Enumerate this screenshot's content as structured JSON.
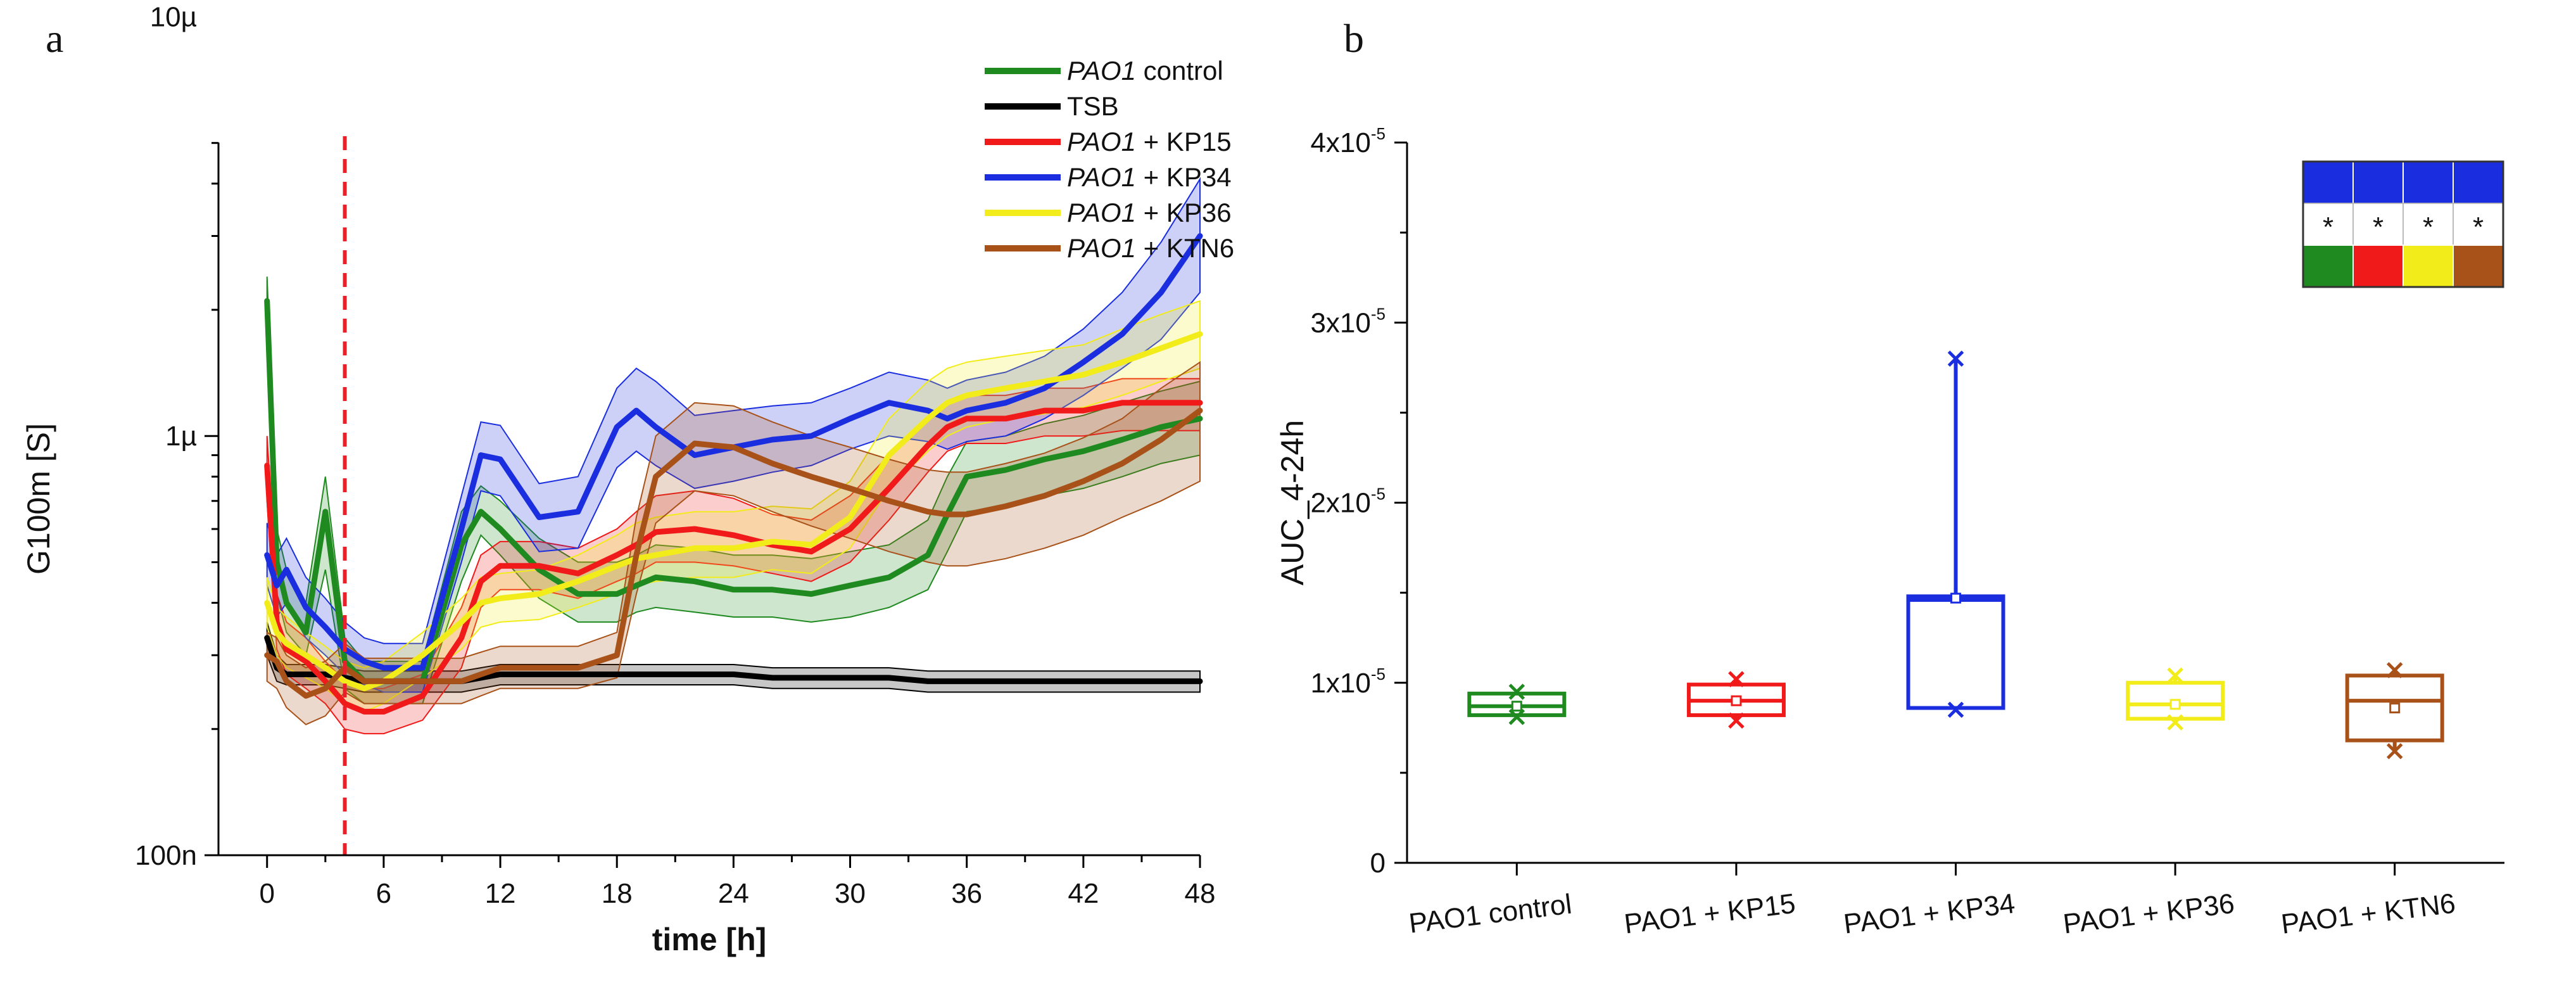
{
  "panels": {
    "a_letter": "a",
    "b_letter": "b"
  },
  "chart_data": [
    {
      "type": "line",
      "id": "panel-a",
      "title": "",
      "xlabel": "time [h]",
      "ylabel": "G100m [S]",
      "yscale": "log",
      "xlim": [
        -2.5,
        48
      ],
      "ylim_exp": [
        -7,
        -5.3
      ],
      "x_ticks": [
        0,
        6,
        12,
        18,
        24,
        30,
        36,
        42,
        48
      ],
      "x_tick_labels": [
        "0",
        "6",
        "12",
        "18",
        "24",
        "30",
        "36",
        "42",
        "48"
      ],
      "y_ticks": [
        1e-07,
        1e-06,
        1e-05
      ],
      "y_tick_labels": [
        "100n",
        "1µ",
        "10µ"
      ],
      "vline": {
        "x": 4,
        "color": "#e8202a",
        "style": "dashed"
      },
      "legend": {
        "position": "top-right",
        "entries": [
          {
            "italic": "PAO1",
            "text": " control",
            "color": "#1f8a1f"
          },
          {
            "italic": "",
            "text": "TSB",
            "color": "#000000"
          },
          {
            "italic": "PAO1",
            "text": " + KP15",
            "color": "#f01a1a"
          },
          {
            "italic": "PAO1",
            "text": " + KP34",
            "color": "#1a2ee0"
          },
          {
            "italic": "PAO1",
            "text": " + KP36",
            "color": "#f2ec1a"
          },
          {
            "italic": "PAO1",
            "text": " + KTN6",
            "color": "#a8521a"
          }
        ]
      },
      "x": [
        0,
        0.5,
        1,
        2,
        3,
        4,
        5,
        6,
        8,
        10,
        11,
        12,
        14,
        16,
        18,
        19,
        20,
        22,
        24,
        26,
        28,
        30,
        32,
        34,
        35,
        36,
        38,
        40,
        42,
        44,
        46,
        48
      ],
      "series": [
        {
          "name": "PAO1 control",
          "color": "#1f8a1f",
          "values": [
            2.1e-06,
            5e-07,
            4e-07,
            3.4e-07,
            6.6e-07,
            2.9e-07,
            2.6e-07,
            2.6e-07,
            2.6e-07,
            5.5e-07,
            6.6e-07,
            6e-07,
            4.8e-07,
            4.2e-07,
            4.2e-07,
            4.4e-07,
            4.6e-07,
            4.5e-07,
            4.3e-07,
            4.3e-07,
            4.2e-07,
            4.4e-07,
            4.6e-07,
            5.2e-07,
            6.5e-07,
            8e-07,
            8.3e-07,
            8.8e-07,
            9.2e-07,
            9.8e-07,
            1.05e-06,
            1.1e-06
          ],
          "lower": [
            1.6e-06,
            4.2e-07,
            3.4e-07,
            3e-07,
            4.8e-07,
            2.5e-07,
            2.3e-07,
            2.3e-07,
            2.3e-07,
            4.5e-07,
            5.8e-07,
            5.2e-07,
            4.1e-07,
            3.6e-07,
            3.6e-07,
            3.8e-07,
            3.9e-07,
            3.8e-07,
            3.7e-07,
            3.7e-07,
            3.6e-07,
            3.7e-07,
            3.9e-07,
            4.3e-07,
            5.3e-07,
            6.6e-07,
            6.8e-07,
            7.2e-07,
            7.5e-07,
            8e-07,
            8.6e-07,
            9e-07
          ],
          "upper": [
            2.4e-06,
            6e-07,
            4.8e-07,
            4e-07,
            8e-07,
            3.3e-07,
            2.9e-07,
            2.9e-07,
            2.9e-07,
            6.6e-07,
            7.6e-07,
            7e-07,
            5.7e-07,
            5e-07,
            5e-07,
            5.2e-07,
            5.5e-07,
            5.4e-07,
            5.2e-07,
            5.2e-07,
            5.1e-07,
            5.3e-07,
            5.5e-07,
            6.3e-07,
            8e-07,
            9.7e-07,
            1e-06,
            1.07e-06,
            1.12e-06,
            1.2e-06,
            1.28e-06,
            1.35e-06
          ]
        },
        {
          "name": "TSB",
          "color": "#000000",
          "values": [
            3.3e-07,
            2.8e-07,
            2.7e-07,
            2.7e-07,
            2.7e-07,
            2.65e-07,
            2.6e-07,
            2.6e-07,
            2.6e-07,
            2.6e-07,
            2.65e-07,
            2.7e-07,
            2.7e-07,
            2.7e-07,
            2.7e-07,
            2.7e-07,
            2.7e-07,
            2.7e-07,
            2.7e-07,
            2.65e-07,
            2.65e-07,
            2.65e-07,
            2.65e-07,
            2.6e-07,
            2.6e-07,
            2.6e-07,
            2.6e-07,
            2.6e-07,
            2.6e-07,
            2.6e-07,
            2.6e-07,
            2.6e-07
          ],
          "lower": [
            3e-07,
            2.6e-07,
            2.55e-07,
            2.55e-07,
            2.55e-07,
            2.5e-07,
            2.45e-07,
            2.45e-07,
            2.45e-07,
            2.45e-07,
            2.5e-07,
            2.55e-07,
            2.55e-07,
            2.55e-07,
            2.55e-07,
            2.55e-07,
            2.55e-07,
            2.55e-07,
            2.55e-07,
            2.5e-07,
            2.5e-07,
            2.5e-07,
            2.5e-07,
            2.45e-07,
            2.45e-07,
            2.45e-07,
            2.45e-07,
            2.45e-07,
            2.45e-07,
            2.45e-07,
            2.45e-07,
            2.45e-07
          ],
          "upper": [
            3.6e-07,
            3e-07,
            2.85e-07,
            2.85e-07,
            2.85e-07,
            2.8e-07,
            2.75e-07,
            2.75e-07,
            2.75e-07,
            2.75e-07,
            2.8e-07,
            2.85e-07,
            2.85e-07,
            2.85e-07,
            2.85e-07,
            2.85e-07,
            2.85e-07,
            2.85e-07,
            2.85e-07,
            2.8e-07,
            2.8e-07,
            2.8e-07,
            2.8e-07,
            2.75e-07,
            2.75e-07,
            2.75e-07,
            2.75e-07,
            2.75e-07,
            2.75e-07,
            2.75e-07,
            2.75e-07,
            2.75e-07
          ]
        },
        {
          "name": "PAO1 + KP15",
          "color": "#f01a1a",
          "values": [
            8.5e-07,
            3.6e-07,
            3.1e-07,
            2.9e-07,
            2.6e-07,
            2.3e-07,
            2.2e-07,
            2.2e-07,
            2.4e-07,
            3.3e-07,
            4.5e-07,
            4.9e-07,
            4.9e-07,
            4.7e-07,
            5.2e-07,
            5.5e-07,
            5.9e-07,
            6e-07,
            5.8e-07,
            5.5e-07,
            5.3e-07,
            6e-07,
            7.5e-07,
            9.5e-07,
            1.05e-06,
            1.1e-06,
            1.1e-06,
            1.15e-06,
            1.15e-06,
            1.2e-06,
            1.2e-06,
            1.2e-06
          ],
          "lower": [
            7e-07,
            3.1e-07,
            2.7e-07,
            2.5e-07,
            2.3e-07,
            2e-07,
            1.95e-07,
            1.95e-07,
            2.1e-07,
            2.8e-07,
            3.9e-07,
            4.3e-07,
            4.3e-07,
            4.1e-07,
            4.5e-07,
            4.7e-07,
            5e-07,
            5e-07,
            4.9e-07,
            4.7e-07,
            4.5e-07,
            5e-07,
            6.3e-07,
            8.2e-07,
            9.2e-07,
            9.6e-07,
            9.6e-07,
            1e-06,
            1e-06,
            1.03e-06,
            1.03e-06,
            1.03e-06
          ],
          "upper": [
            1e-06,
            4.2e-07,
            3.6e-07,
            3.3e-07,
            2.9e-07,
            2.6e-07,
            2.5e-07,
            2.5e-07,
            2.7e-07,
            3.9e-07,
            5.2e-07,
            5.6e-07,
            5.6e-07,
            5.4e-07,
            6e-07,
            6.6e-07,
            7.2e-07,
            7.4e-07,
            7.1e-07,
            6.5e-07,
            6.3e-07,
            7.2e-07,
            9e-07,
            1.1e-06,
            1.2e-06,
            1.25e-06,
            1.25e-06,
            1.3e-06,
            1.3e-06,
            1.37e-06,
            1.37e-06,
            1.37e-06
          ]
        },
        {
          "name": "PAO1 + KP34",
          "color": "#1a2ee0",
          "values": [
            5.2e-07,
            4.4e-07,
            4.8e-07,
            3.9e-07,
            3.5e-07,
            3.1e-07,
            2.9e-07,
            2.8e-07,
            2.8e-07,
            6e-07,
            9e-07,
            8.8e-07,
            6.4e-07,
            6.6e-07,
            1.05e-06,
            1.15e-06,
            1.05e-06,
            9e-07,
            9.4e-07,
            9.8e-07,
            1e-06,
            1.1e-06,
            1.2e-06,
            1.15e-06,
            1.1e-06,
            1.15e-06,
            1.2e-06,
            1.3e-06,
            1.5e-06,
            1.75e-06,
            2.2e-06,
            3e-06
          ],
          "lower": [
            4.4e-07,
            3.7e-07,
            4e-07,
            3.3e-07,
            3e-07,
            2.7e-07,
            2.55e-07,
            2.45e-07,
            2.45e-07,
            5e-07,
            7.4e-07,
            7.2e-07,
            5.3e-07,
            5.4e-07,
            8.4e-07,
            9.2e-07,
            8.5e-07,
            7.5e-07,
            7.8e-07,
            8.2e-07,
            8.5e-07,
            9.3e-07,
            1e-06,
            9.7e-07,
            9.3e-07,
            9.7e-07,
            1e-06,
            1.1e-06,
            1.25e-06,
            1.45e-06,
            1.7e-06,
            2.2e-06
          ],
          "upper": [
            6.2e-07,
            5.2e-07,
            5.7e-07,
            4.6e-07,
            4.1e-07,
            3.6e-07,
            3.3e-07,
            3.2e-07,
            3.2e-07,
            7.2e-07,
            1.08e-06,
            1.06e-06,
            7.7e-07,
            8e-07,
            1.3e-06,
            1.45e-06,
            1.35e-06,
            1.12e-06,
            1.15e-06,
            1.18e-06,
            1.2e-06,
            1.3e-06,
            1.42e-06,
            1.36e-06,
            1.3e-06,
            1.36e-06,
            1.42e-06,
            1.55e-06,
            1.8e-06,
            2.2e-06,
            2.9e-06,
            4.1e-06
          ]
        },
        {
          "name": "PAO1 + KP36",
          "color": "#f2ec1a",
          "values": [
            4e-07,
            3.4e-07,
            3.2e-07,
            3e-07,
            2.8e-07,
            2.6e-07,
            2.5e-07,
            2.6e-07,
            3e-07,
            3.6e-07,
            4e-07,
            4.1e-07,
            4.2e-07,
            4.5e-07,
            4.9e-07,
            5.1e-07,
            5.2e-07,
            5.4e-07,
            5.4e-07,
            5.6e-07,
            5.5e-07,
            6.4e-07,
            9e-07,
            1.1e-06,
            1.2e-06,
            1.25e-06,
            1.3e-06,
            1.35e-06,
            1.4e-06,
            1.5e-06,
            1.62e-06,
            1.75e-06
          ],
          "lower": [
            3.5e-07,
            3e-07,
            2.8e-07,
            2.65e-07,
            2.5e-07,
            2.3e-07,
            2.2e-07,
            2.3e-07,
            2.65e-07,
            3.1e-07,
            3.5e-07,
            3.6e-07,
            3.65e-07,
            3.9e-07,
            4.2e-07,
            4.4e-07,
            4.5e-07,
            4.6e-07,
            4.6e-07,
            4.8e-07,
            4.7e-07,
            5.4e-07,
            7.5e-07,
            9.2e-07,
            1e-06,
            1.05e-06,
            1.1e-06,
            1.13e-06,
            1.17e-06,
            1.25e-06,
            1.35e-06,
            1.45e-06
          ],
          "upper": [
            4.6e-07,
            3.9e-07,
            3.7e-07,
            3.4e-07,
            3.15e-07,
            2.9e-07,
            2.8e-07,
            2.9e-07,
            3.4e-07,
            4.1e-07,
            4.6e-07,
            4.7e-07,
            4.8e-07,
            5.2e-07,
            5.8e-07,
            6.2e-07,
            6.4e-07,
            6.6e-07,
            6.6e-07,
            6.8e-07,
            6.7e-07,
            7.8e-07,
            1.1e-06,
            1.35e-06,
            1.45e-06,
            1.5e-06,
            1.55e-06,
            1.6e-06,
            1.65e-06,
            1.8e-06,
            1.95e-06,
            2.1e-06
          ]
        },
        {
          "name": "PAO1 + KTN6",
          "color": "#a8521a",
          "values": [
            3e-07,
            2.9e-07,
            2.6e-07,
            2.4e-07,
            2.5e-07,
            2.8e-07,
            2.6e-07,
            2.6e-07,
            2.6e-07,
            2.6e-07,
            2.7e-07,
            2.8e-07,
            2.8e-07,
            2.8e-07,
            3e-07,
            5.2e-07,
            8e-07,
            9.6e-07,
            9.4e-07,
            8.6e-07,
            8e-07,
            7.5e-07,
            7e-07,
            6.6e-07,
            6.5e-07,
            6.5e-07,
            6.8e-07,
            7.2e-07,
            7.8e-07,
            8.6e-07,
            9.8e-07,
            1.15e-06
          ],
          "lower": [
            2.6e-07,
            2.5e-07,
            2.25e-07,
            2.05e-07,
            2.15e-07,
            2.45e-07,
            2.3e-07,
            2.3e-07,
            2.3e-07,
            2.3e-07,
            2.4e-07,
            2.5e-07,
            2.5e-07,
            2.5e-07,
            2.65e-07,
            4.2e-07,
            6.2e-07,
            7.4e-07,
            7.2e-07,
            6.6e-07,
            6.1e-07,
            5.7e-07,
            5.3e-07,
            5e-07,
            4.9e-07,
            4.9e-07,
            5.1e-07,
            5.4e-07,
            5.8e-07,
            6.4e-07,
            7e-07,
            7.8e-07
          ],
          "upper": [
            3.4e-07,
            3.3e-07,
            3e-07,
            2.8e-07,
            2.9e-07,
            3.2e-07,
            2.95e-07,
            2.95e-07,
            2.95e-07,
            2.95e-07,
            3.05e-07,
            3.15e-07,
            3.15e-07,
            3.15e-07,
            3.4e-07,
            6.4e-07,
            1e-06,
            1.2e-06,
            1.18e-06,
            1.08e-06,
            1e-06,
            9.4e-07,
            8.8e-07,
            8.3e-07,
            8.2e-07,
            8.2e-07,
            8.6e-07,
            9.1e-07,
            9.9e-07,
            1.1e-06,
            1.3e-06,
            1.5e-06
          ]
        }
      ]
    },
    {
      "type": "box",
      "id": "panel-b",
      "title": "",
      "xlabel": "",
      "ylabel": "AUC_4-24h",
      "ylim": [
        0,
        4e-05
      ],
      "y_ticks": [
        {
          "value": 0,
          "mant": "0",
          "exp": ""
        },
        {
          "value": 1e-05,
          "mant": "1x10",
          "exp": "-5"
        },
        {
          "value": 2e-05,
          "mant": "2x10",
          "exp": "-5"
        },
        {
          "value": 3e-05,
          "mant": "3x10",
          "exp": "-5"
        },
        {
          "value": 4e-05,
          "mant": "4x10",
          "exp": "-5"
        }
      ],
      "categories": [
        "PAO1 control",
        "PAO1 +  KP15",
        "PAO1 + KP34",
        "PAO1 + KP36",
        "PAO1 + KTN6"
      ],
      "boxes": [
        {
          "color": "#1f8a1f",
          "min": 8.1e-06,
          "q1": 8.2e-06,
          "median": 8.7e-06,
          "mean": 8.7e-06,
          "q3": 9.4e-06,
          "max": 9.5e-06
        },
        {
          "color": "#f01a1a",
          "min": 7.9e-06,
          "q1": 8.2e-06,
          "median": 9e-06,
          "mean": 9e-06,
          "q3": 9.9e-06,
          "max": 1.02e-05
        },
        {
          "color": "#1a2ee0",
          "min": 8.5e-06,
          "q1": 8.6e-06,
          "median": 1.46e-05,
          "mean": 1.47e-05,
          "q3": 1.48e-05,
          "max": 2.8e-05
        },
        {
          "color": "#f2ec1a",
          "min": 7.8e-06,
          "q1": 8e-06,
          "median": 8.8e-06,
          "mean": 8.8e-06,
          "q3": 1e-05,
          "max": 1.04e-05
        },
        {
          "color": "#a8521a",
          "min": 6.2e-06,
          "q1": 6.8e-06,
          "median": 9e-06,
          "mean": 8.6e-06,
          "q3": 1.04e-05,
          "max": 1.07e-05
        }
      ],
      "significance_table": {
        "position": "top-right",
        "header_color": "#1a2ee0",
        "marks": [
          "*",
          "*",
          "*",
          "*"
        ],
        "colors": [
          "#1f8a1f",
          "#f01a1a",
          "#f2ec1a",
          "#a8521a"
        ]
      }
    }
  ]
}
